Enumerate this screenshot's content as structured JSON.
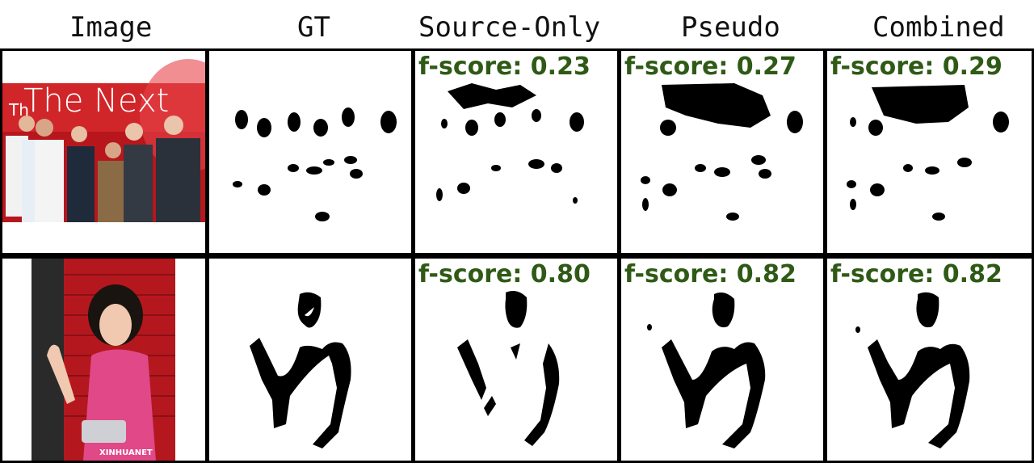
{
  "headers": {
    "image": "Image",
    "gt": "GT",
    "source_only": "Source-Only",
    "pseudo": "Pseudo",
    "combined": "Combined"
  },
  "rows": [
    {
      "scores": {
        "source_only": "f-score: 0.23",
        "pseudo": "f-score: 0.27",
        "combined": "f-score: 0.29"
      },
      "photo_caption": "The Next",
      "photo_sub": "Th"
    },
    {
      "scores": {
        "source_only": "f-score: 0.80",
        "pseudo": "f-score: 0.82",
        "combined": "f-score: 0.82"
      },
      "watermark": "XINHUANET"
    }
  ],
  "colors": {
    "score_text": "#2f5a16",
    "grid_line": "#000000"
  }
}
